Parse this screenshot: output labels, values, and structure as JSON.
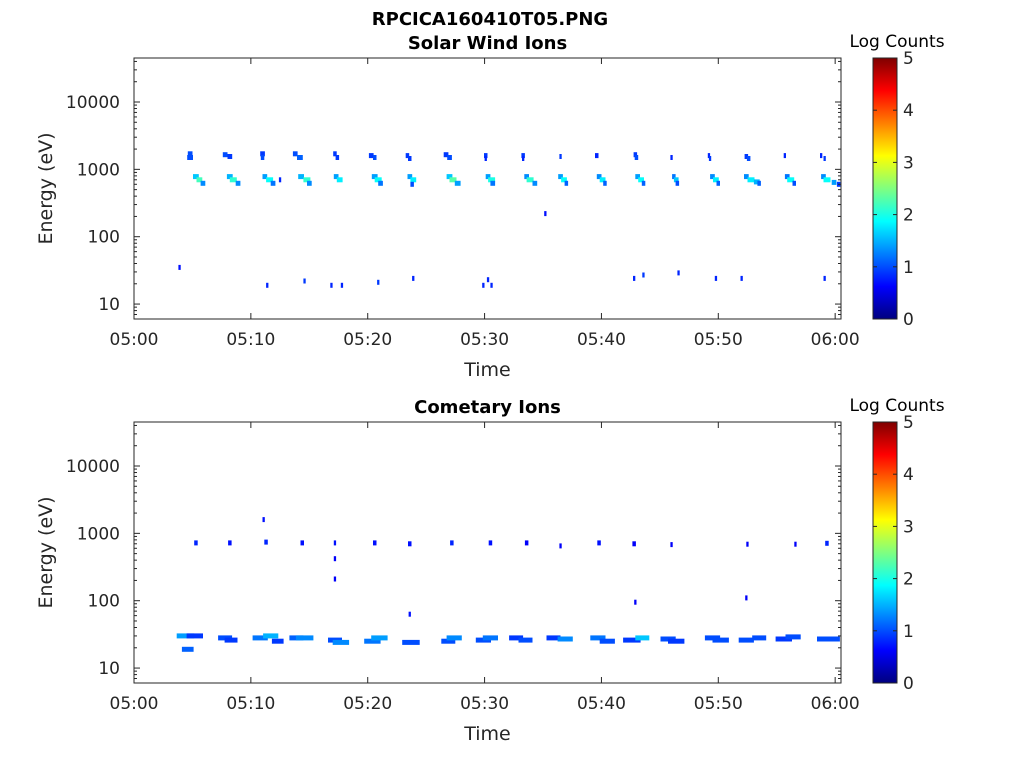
{
  "figure_title": "RPCICA160410T05.PNG",
  "chart_data": [
    {
      "type": "heatmap",
      "title": "Solar Wind Ions",
      "xlabel": "Time",
      "ylabel": "Energy (eV)",
      "x_ticks": [
        "05:00",
        "05:10",
        "05:20",
        "05:30",
        "05:40",
        "05:50",
        "06:00"
      ],
      "x_range_minutes": [
        0,
        60.5
      ],
      "y_scale": "log",
      "y_range": [
        6,
        45000
      ],
      "y_ticks": [
        {
          "value": 10,
          "label": "10"
        },
        {
          "value": 100,
          "label": "100"
        },
        {
          "value": 1000,
          "label": "1000"
        },
        {
          "value": 10000,
          "label": "10000"
        }
      ],
      "colorbar": {
        "title": "Log Counts",
        "min": 0,
        "max": 5,
        "ticks": [
          "0",
          "1",
          "2",
          "3",
          "4",
          "5"
        ],
        "colormap": "jet"
      },
      "cells": [
        [
          4.8,
          1700,
          1.0,
          0.4
        ],
        [
          4.8,
          1500,
          1.0,
          0.5
        ],
        [
          5.3,
          780,
          1.6,
          0.5
        ],
        [
          5.6,
          700,
          2.2,
          0.5
        ],
        [
          5.9,
          620,
          1.3,
          0.4
        ],
        [
          7.8,
          1650,
          1.0,
          0.4
        ],
        [
          8.2,
          1550,
          0.9,
          0.4
        ],
        [
          8.2,
          780,
          1.5,
          0.5
        ],
        [
          8.5,
          700,
          2.1,
          0.6
        ],
        [
          8.9,
          620,
          1.3,
          0.4
        ],
        [
          11.0,
          1700,
          0.9,
          0.4
        ],
        [
          11.0,
          1500,
          1.0,
          0.3
        ],
        [
          11.2,
          780,
          1.4,
          0.4
        ],
        [
          11.6,
          700,
          1.9,
          0.6
        ],
        [
          11.9,
          620,
          1.2,
          0.4
        ],
        [
          12.5,
          700,
          0.8,
          0.2
        ],
        [
          13.8,
          1700,
          1.0,
          0.4
        ],
        [
          14.2,
          1500,
          1.1,
          0.5
        ],
        [
          14.3,
          780,
          1.5,
          0.5
        ],
        [
          14.8,
          700,
          2.1,
          0.6
        ],
        [
          15.0,
          620,
          1.3,
          0.4
        ],
        [
          17.2,
          1700,
          0.9,
          0.3
        ],
        [
          17.4,
          1500,
          0.9,
          0.3
        ],
        [
          17.3,
          780,
          1.4,
          0.4
        ],
        [
          17.6,
          700,
          1.8,
          0.5
        ],
        [
          20.3,
          1600,
          0.9,
          0.4
        ],
        [
          20.6,
          1500,
          1.0,
          0.3
        ],
        [
          20.6,
          780,
          1.4,
          0.5
        ],
        [
          20.9,
          700,
          1.9,
          0.6
        ],
        [
          21.1,
          620,
          1.2,
          0.4
        ],
        [
          23.4,
          1600,
          0.9,
          0.3
        ],
        [
          23.6,
          1450,
          0.9,
          0.3
        ],
        [
          23.6,
          780,
          1.4,
          0.4
        ],
        [
          23.9,
          700,
          1.8,
          0.5
        ],
        [
          23.8,
          600,
          1.0,
          0.3
        ],
        [
          26.7,
          1650,
          0.9,
          0.4
        ],
        [
          27.0,
          1500,
          1.0,
          0.4
        ],
        [
          27.0,
          780,
          1.6,
          0.5
        ],
        [
          27.3,
          700,
          2.3,
          0.6
        ],
        [
          27.7,
          620,
          1.4,
          0.5
        ],
        [
          30.1,
          1600,
          0.9,
          0.3
        ],
        [
          30.1,
          1450,
          0.8,
          0.2
        ],
        [
          30.3,
          780,
          1.4,
          0.4
        ],
        [
          30.6,
          700,
          2.0,
          0.6
        ],
        [
          30.7,
          620,
          1.2,
          0.4
        ],
        [
          33.3,
          1600,
          0.9,
          0.3
        ],
        [
          33.3,
          1450,
          0.8,
          0.2
        ],
        [
          33.6,
          780,
          1.3,
          0.4
        ],
        [
          33.9,
          700,
          2.1,
          0.6
        ],
        [
          34.3,
          620,
          1.3,
          0.4
        ],
        [
          36.5,
          1550,
          0.9,
          0.2
        ],
        [
          36.5,
          780,
          1.4,
          0.4
        ],
        [
          36.8,
          700,
          1.9,
          0.5
        ],
        [
          37.0,
          620,
          1.1,
          0.3
        ],
        [
          39.6,
          1600,
          0.8,
          0.3
        ],
        [
          39.8,
          780,
          1.3,
          0.4
        ],
        [
          40.1,
          700,
          1.8,
          0.5
        ],
        [
          40.3,
          620,
          1.1,
          0.3
        ],
        [
          42.9,
          1650,
          0.9,
          0.3
        ],
        [
          43.0,
          1500,
          1.0,
          0.3
        ],
        [
          43.1,
          780,
          1.4,
          0.4
        ],
        [
          43.4,
          700,
          1.9,
          0.5
        ],
        [
          43.6,
          620,
          1.1,
          0.3
        ],
        [
          46.0,
          1500,
          0.8,
          0.2
        ],
        [
          46.2,
          780,
          1.2,
          0.3
        ],
        [
          46.4,
          700,
          1.6,
          0.4
        ],
        [
          46.5,
          620,
          1.0,
          0.3
        ],
        [
          49.2,
          1600,
          0.8,
          0.2
        ],
        [
          49.3,
          1450,
          0.9,
          0.2
        ],
        [
          49.5,
          780,
          1.3,
          0.4
        ],
        [
          49.8,
          700,
          1.8,
          0.5
        ],
        [
          50.0,
          620,
          1.1,
          0.3
        ],
        [
          52.4,
          1550,
          0.9,
          0.3
        ],
        [
          52.6,
          1450,
          1.0,
          0.3
        ],
        [
          52.4,
          780,
          1.3,
          0.4
        ],
        [
          52.8,
          700,
          1.8,
          0.6
        ],
        [
          53.3,
          650,
          1.5,
          0.5
        ],
        [
          53.5,
          620,
          1.1,
          0.3
        ],
        [
          55.7,
          1600,
          0.8,
          0.2
        ],
        [
          55.9,
          780,
          1.2,
          0.4
        ],
        [
          56.2,
          700,
          1.9,
          0.6
        ],
        [
          56.5,
          620,
          1.0,
          0.3
        ],
        [
          58.8,
          1600,
          0.8,
          0.2
        ],
        [
          59.1,
          1450,
          0.9,
          0.2
        ],
        [
          59.0,
          780,
          1.3,
          0.4
        ],
        [
          59.3,
          700,
          1.9,
          0.6
        ],
        [
          59.9,
          640,
          1.4,
          0.4
        ],
        [
          60.3,
          600,
          0.9,
          0.3
        ],
        [
          35.2,
          220,
          0.7,
          0.2
        ],
        [
          3.9,
          35,
          0.7,
          0.2
        ],
        [
          11.4,
          19,
          0.8,
          0.2
        ],
        [
          14.6,
          22,
          0.9,
          0.2
        ],
        [
          16.9,
          19,
          0.8,
          0.2
        ],
        [
          17.8,
          19,
          0.8,
          0.2
        ],
        [
          20.9,
          21,
          0.9,
          0.2
        ],
        [
          23.9,
          24,
          0.8,
          0.2
        ],
        [
          29.9,
          19,
          0.8,
          0.2
        ],
        [
          30.3,
          23,
          0.8,
          0.2
        ],
        [
          30.6,
          19,
          0.8,
          0.2
        ],
        [
          42.8,
          24,
          0.8,
          0.2
        ],
        [
          43.6,
          27,
          0.9,
          0.2
        ],
        [
          46.6,
          29,
          0.8,
          0.2
        ],
        [
          49.8,
          24,
          0.8,
          0.2
        ],
        [
          52.0,
          24,
          0.8,
          0.2
        ],
        [
          59.1,
          24,
          0.8,
          0.2
        ]
      ]
    },
    {
      "type": "heatmap",
      "title": "Cometary Ions",
      "xlabel": "Time",
      "ylabel": "Energy (eV)",
      "x_ticks": [
        "05:00",
        "05:10",
        "05:20",
        "05:30",
        "05:40",
        "05:50",
        "06:00"
      ],
      "x_range_minutes": [
        0,
        60.5
      ],
      "y_scale": "log",
      "y_range": [
        6,
        45000
      ],
      "y_ticks": [
        {
          "value": 10,
          "label": "10"
        },
        {
          "value": 100,
          "label": "100"
        },
        {
          "value": 1000,
          "label": "1000"
        },
        {
          "value": 10000,
          "label": "10000"
        }
      ],
      "colorbar": {
        "title": "Log Counts",
        "min": 0,
        "max": 5,
        "ticks": [
          "0",
          "1",
          "2",
          "3",
          "4",
          "5"
        ],
        "colormap": "jet"
      },
      "cells": [
        [
          5.3,
          720,
          0.8,
          0.3
        ],
        [
          8.2,
          720,
          0.7,
          0.3
        ],
        [
          11.1,
          1600,
          0.7,
          0.2
        ],
        [
          11.3,
          740,
          0.8,
          0.3
        ],
        [
          14.4,
          720,
          0.7,
          0.3
        ],
        [
          17.2,
          720,
          0.7,
          0.2
        ],
        [
          17.2,
          420,
          0.6,
          0.2
        ],
        [
          17.2,
          210,
          0.6,
          0.2
        ],
        [
          20.6,
          720,
          0.7,
          0.3
        ],
        [
          23.6,
          700,
          0.7,
          0.3
        ],
        [
          27.2,
          720,
          0.8,
          0.3
        ],
        [
          30.5,
          720,
          0.7,
          0.3
        ],
        [
          33.6,
          720,
          0.6,
          0.3
        ],
        [
          36.5,
          650,
          0.6,
          0.2
        ],
        [
          39.8,
          720,
          0.7,
          0.3
        ],
        [
          42.8,
          700,
          0.6,
          0.3
        ],
        [
          46.0,
          680,
          0.6,
          0.2
        ],
        [
          52.5,
          690,
          0.6,
          0.2
        ],
        [
          56.6,
          690,
          0.6,
          0.2
        ],
        [
          59.3,
          710,
          0.8,
          0.3
        ],
        [
          23.6,
          63,
          0.7,
          0.2
        ],
        [
          42.9,
          95,
          0.6,
          0.2
        ],
        [
          52.4,
          110,
          0.6,
          0.2
        ],
        [
          4.4,
          30,
          1.4,
          1.5
        ],
        [
          4.6,
          19,
          1.1,
          1.0
        ],
        [
          5.2,
          30,
          0.9,
          1.4
        ],
        [
          7.8,
          28,
          1.0,
          1.2
        ],
        [
          8.3,
          26,
          0.9,
          1.1
        ],
        [
          10.8,
          28,
          1.2,
          1.3
        ],
        [
          11.7,
          30,
          1.5,
          1.3
        ],
        [
          12.3,
          25,
          0.9,
          1.0
        ],
        [
          13.9,
          28,
          1.1,
          1.2
        ],
        [
          14.6,
          28,
          1.3,
          1.5
        ],
        [
          17.2,
          26,
          1.0,
          1.2
        ],
        [
          17.7,
          24,
          1.3,
          1.4
        ],
        [
          20.4,
          25,
          1.2,
          1.4
        ],
        [
          21.0,
          28,
          1.4,
          1.4
        ],
        [
          23.7,
          24,
          1.0,
          1.5
        ],
        [
          26.9,
          25,
          1.0,
          1.2
        ],
        [
          27.4,
          28,
          1.3,
          1.3
        ],
        [
          29.9,
          26,
          1.0,
          1.3
        ],
        [
          30.5,
          28,
          1.2,
          1.3
        ],
        [
          32.7,
          28,
          0.9,
          1.2
        ],
        [
          33.5,
          26,
          1.0,
          1.2
        ],
        [
          35.9,
          28,
          0.9,
          1.2
        ],
        [
          36.9,
          27,
          1.3,
          1.3
        ],
        [
          39.7,
          28,
          1.2,
          1.3
        ],
        [
          40.5,
          25,
          1.0,
          1.3
        ],
        [
          42.6,
          26,
          0.9,
          1.5
        ],
        [
          43.5,
          28,
          1.6,
          1.2
        ],
        [
          45.7,
          27,
          1.0,
          1.3
        ],
        [
          46.4,
          25,
          0.9,
          1.4
        ],
        [
          49.5,
          28,
          1.0,
          1.3
        ],
        [
          50.2,
          26,
          1.0,
          1.4
        ],
        [
          52.4,
          26,
          1.0,
          1.3
        ],
        [
          53.5,
          28,
          1.0,
          1.2
        ],
        [
          55.6,
          27,
          0.9,
          1.4
        ],
        [
          56.4,
          29,
          1.0,
          1.3
        ],
        [
          59.1,
          27,
          1.0,
          1.3
        ],
        [
          59.7,
          27,
          1.0,
          1.4
        ]
      ]
    }
  ]
}
